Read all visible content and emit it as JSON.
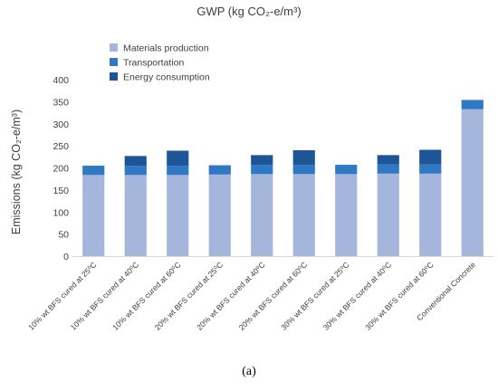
{
  "chart_data": {
    "type": "bar",
    "stacked": true,
    "title": "GWP (kg CO₂-e/m³)",
    "ylabel": "Emissions (kg CO₂-e/m³)",
    "xlabel": "",
    "ylim": [
      0,
      400
    ],
    "yticks": [
      0,
      50,
      100,
      150,
      200,
      250,
      300,
      350,
      400
    ],
    "grid": false,
    "legend_position": "top-left",
    "categories": [
      "10% wt BFS cured at 25⁰C",
      "10% wt BFS cured at 40⁰C",
      "10% wt BFS cured at 60⁰C",
      "20% wt BFS cured at 25⁰C",
      "20% wt BFS cured at 40⁰C",
      "20% wt BFS cured at 60⁰C",
      "30% wt BFS cured at 25⁰C",
      "30% wt BFS cured at 40⁰C",
      "30% wt BFS cured at 60⁰C",
      "Conventional Concrete"
    ],
    "series": [
      {
        "name": "Materials production",
        "color": "#a5b6dd",
        "values": [
          184,
          184,
          184,
          185,
          186,
          186,
          186,
          187,
          187,
          333
        ]
      },
      {
        "name": "Transportation",
        "color": "#2e78c4",
        "values": [
          21,
          21,
          21,
          21,
          21,
          21,
          21,
          21,
          21,
          21
        ]
      },
      {
        "name": "Energy consumption",
        "color": "#1e5596",
        "values": [
          0,
          22,
          34,
          0,
          22,
          33,
          0,
          21,
          33,
          0
        ]
      }
    ],
    "caption": "(a)"
  }
}
